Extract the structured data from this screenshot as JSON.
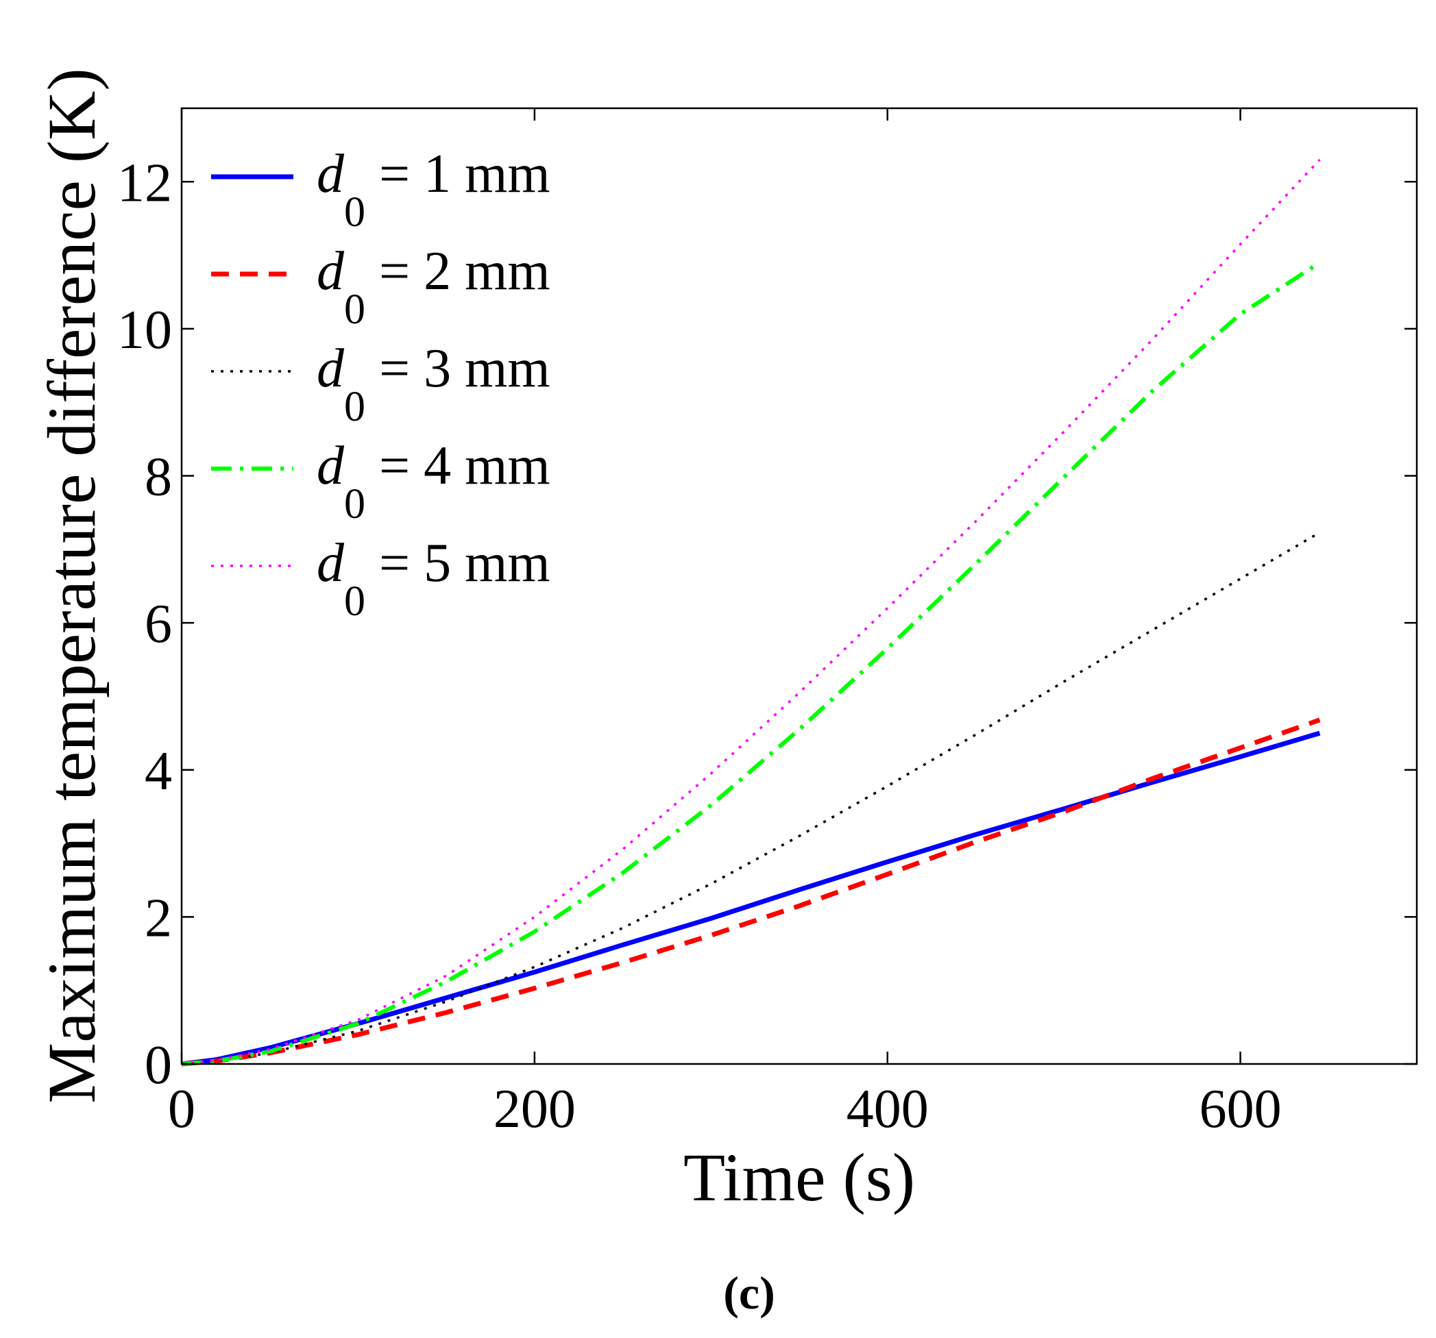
{
  "chart_data": {
    "type": "line",
    "title": "",
    "xlabel": "Time (s)",
    "ylabel": "Maximum temperature difference (K)",
    "xlim": [
      0,
      700
    ],
    "ylim": [
      0,
      13
    ],
    "xticks": [
      0,
      200,
      400,
      600
    ],
    "yticks": [
      0,
      2,
      4,
      6,
      8,
      10,
      12
    ],
    "grid": false,
    "legend_position": "top-left",
    "caption": "(c)",
    "series": [
      {
        "name": "d0 = 1 mm",
        "legend_symbol": "d",
        "legend_subscript": "0",
        "legend_rest": " = 1 mm",
        "color": "#0000ff",
        "style": "solid",
        "x": [
          0,
          20,
          50,
          100,
          150,
          200,
          250,
          300,
          350,
          400,
          450,
          500,
          550,
          600,
          645
        ],
        "y": [
          0,
          0.06,
          0.22,
          0.55,
          0.9,
          1.25,
          1.62,
          1.98,
          2.37,
          2.75,
          3.12,
          3.47,
          3.83,
          4.18,
          4.5
        ]
      },
      {
        "name": "d0 = 2 mm",
        "legend_symbol": "d",
        "legend_subscript": "0",
        "legend_rest": " = 2 mm",
        "color": "#ff0000",
        "style": "dashed",
        "x": [
          0,
          20,
          50,
          100,
          150,
          200,
          250,
          300,
          350,
          400,
          450,
          500,
          550,
          600,
          645
        ],
        "y": [
          0,
          0.04,
          0.15,
          0.4,
          0.7,
          1.03,
          1.38,
          1.75,
          2.15,
          2.58,
          3.02,
          3.43,
          3.88,
          4.3,
          4.68
        ]
      },
      {
        "name": "d0 = 3 mm",
        "legend_symbol": "d",
        "legend_subscript": "0",
        "legend_rest": " = 3 mm",
        "color": "#000000",
        "style": "dotted",
        "x": [
          0,
          20,
          50,
          100,
          150,
          200,
          250,
          300,
          350,
          400,
          450,
          500,
          550,
          600,
          645
        ],
        "y": [
          0,
          0.04,
          0.15,
          0.45,
          0.85,
          1.32,
          1.85,
          2.45,
          3.1,
          3.78,
          4.48,
          5.2,
          5.9,
          6.6,
          7.23
        ]
      },
      {
        "name": "d0 = 4 mm",
        "legend_symbol": "d",
        "legend_subscript": "0",
        "legend_rest": " = 4 mm",
        "color": "#00ff00",
        "style": "dashdot",
        "x": [
          0,
          20,
          50,
          100,
          150,
          200,
          250,
          300,
          350,
          400,
          450,
          500,
          550,
          600,
          645
        ],
        "y": [
          0,
          0.04,
          0.17,
          0.55,
          1.12,
          1.8,
          2.6,
          3.52,
          4.55,
          5.65,
          6.8,
          7.98,
          9.15,
          10.2,
          10.9
        ]
      },
      {
        "name": "d0 = 5 mm",
        "legend_symbol": "d",
        "legend_subscript": "0",
        "legend_rest": " = 5 mm",
        "color": "#ff00ff",
        "style": "dotted",
        "x": [
          0,
          20,
          50,
          100,
          150,
          200,
          250,
          300,
          350,
          400,
          450,
          500,
          550,
          600,
          645
        ],
        "y": [
          0,
          0.05,
          0.2,
          0.6,
          1.2,
          2.0,
          2.92,
          3.95,
          5.05,
          6.2,
          7.38,
          8.6,
          9.85,
          11.15,
          12.3
        ]
      }
    ]
  }
}
